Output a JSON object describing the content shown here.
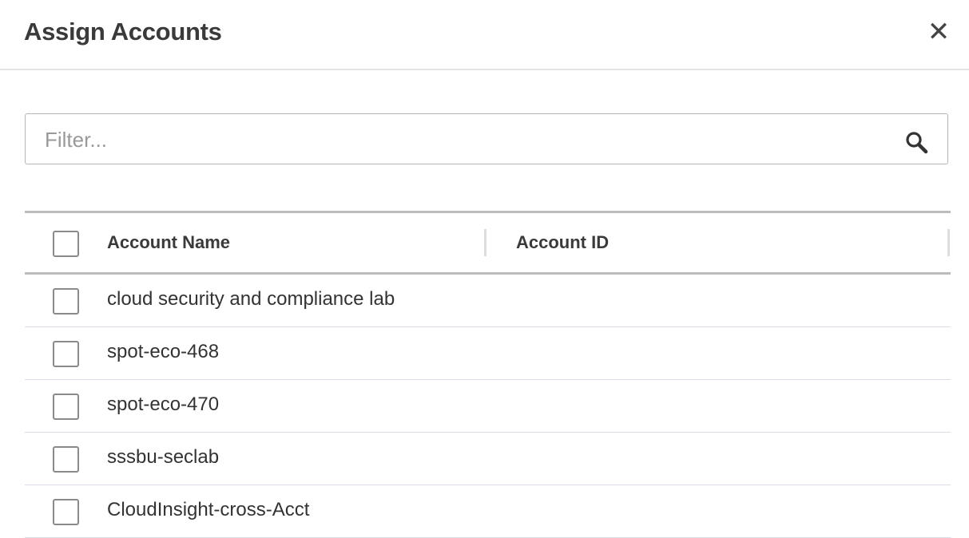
{
  "dialog": {
    "title": "Assign Accounts",
    "close_icon": "close-icon"
  },
  "filter": {
    "placeholder": "Filter...",
    "value": "",
    "icon": "search-icon"
  },
  "table": {
    "columns": [
      "Account Name",
      "Account ID"
    ],
    "rows": [
      {
        "name": "cloud security and compliance lab",
        "id": "",
        "checked": false
      },
      {
        "name": "spot-eco-468",
        "id": "",
        "checked": false
      },
      {
        "name": "spot-eco-470",
        "id": "",
        "checked": false
      },
      {
        "name": "sssbu-seclab",
        "id": "",
        "checked": false
      },
      {
        "name": "CloudInsight-cross-Acct",
        "id": "",
        "checked": false
      }
    ]
  }
}
